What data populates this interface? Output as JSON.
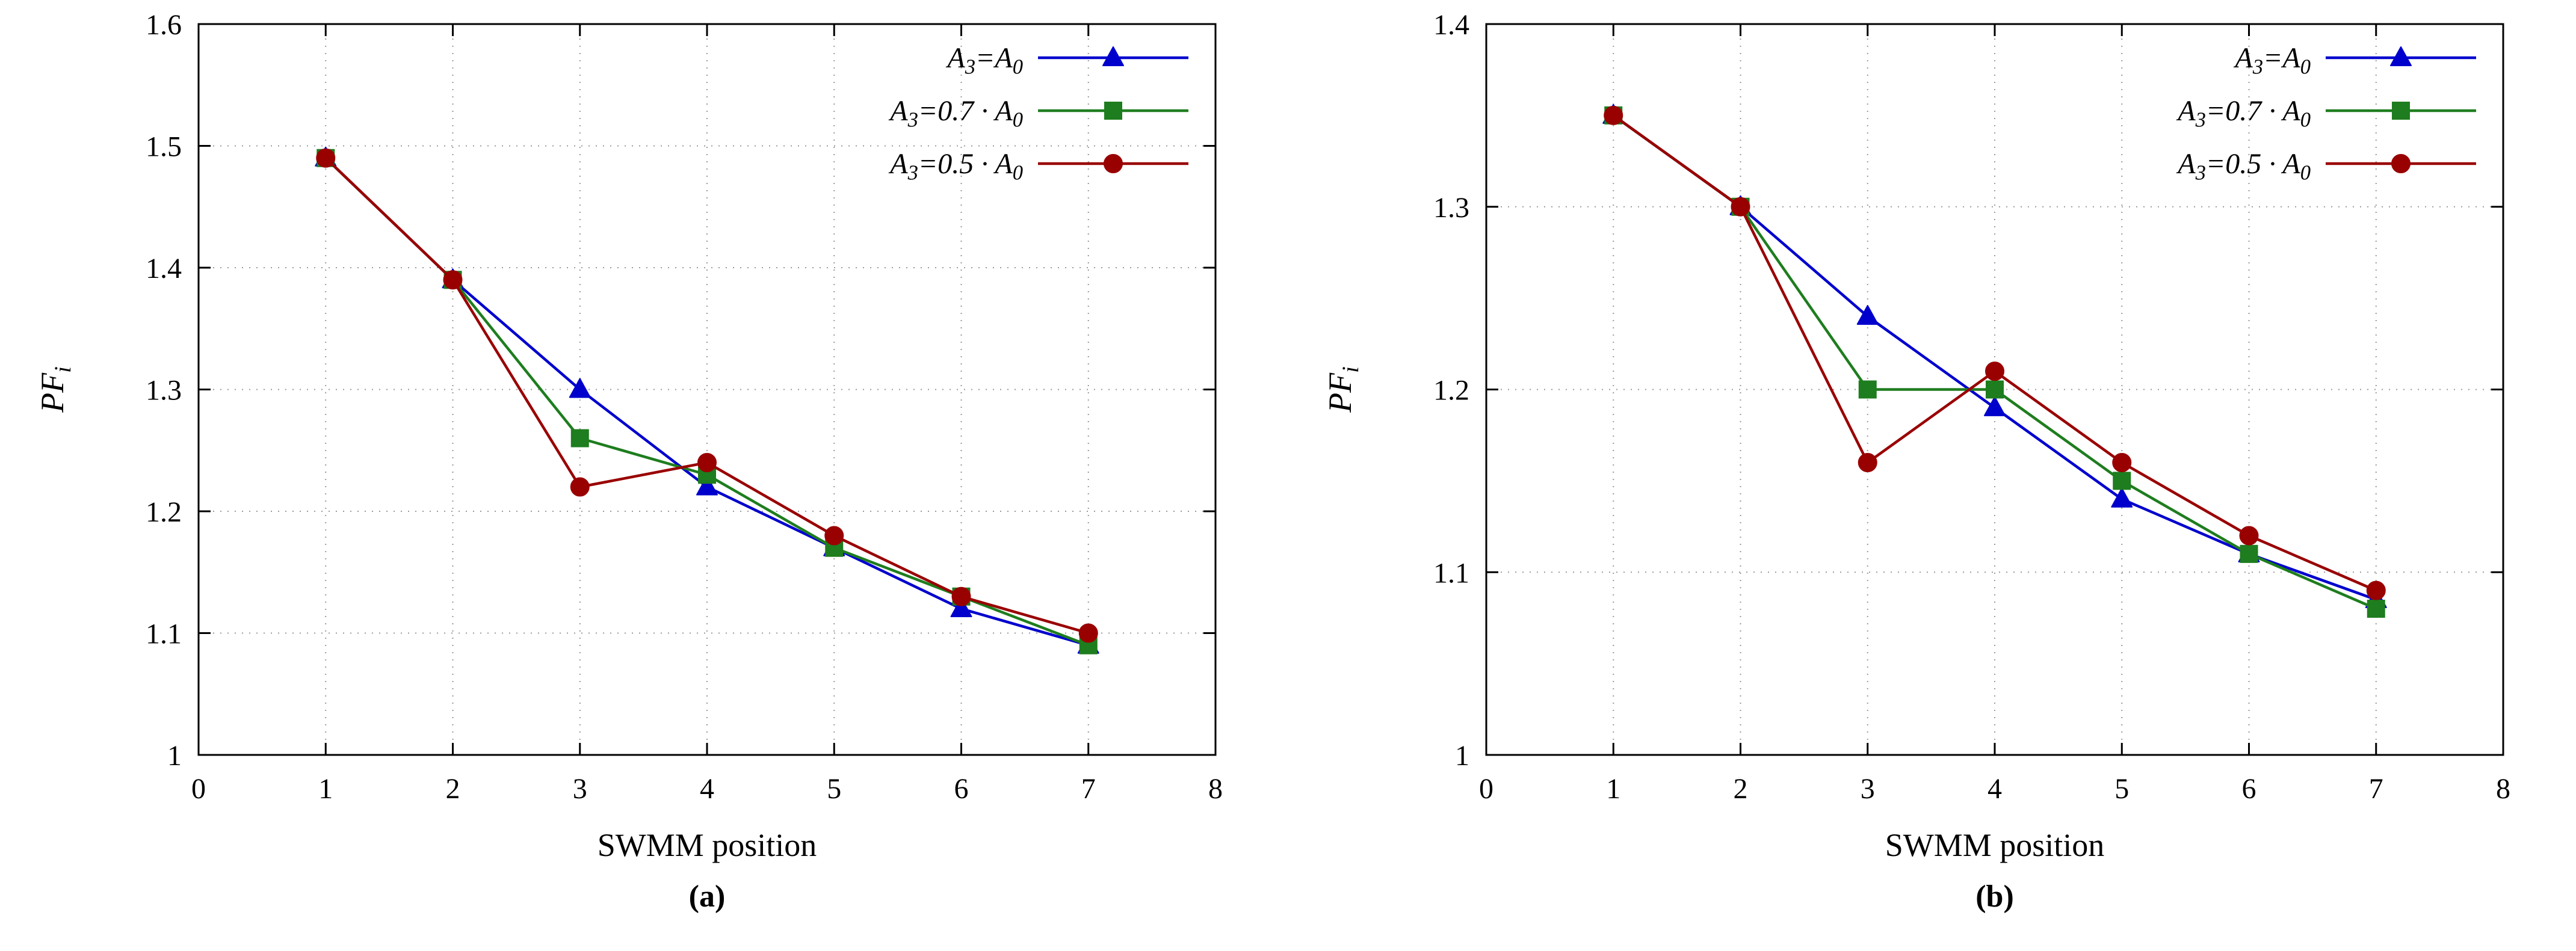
{
  "figure": {
    "background": "#ffffff",
    "text_color": "#000000",
    "grid_color": "#9a9a9a",
    "border_color": "#000000"
  },
  "chart_data": [
    {
      "type": "line",
      "caption": "(a)",
      "xlabel": "SWMM position",
      "ylabel": "PF_{i}",
      "xlim": [
        0,
        8
      ],
      "ylim": [
        1.0,
        1.6
      ],
      "xticks": [
        0,
        1,
        2,
        3,
        4,
        5,
        6,
        7,
        8
      ],
      "yticks": [
        1.0,
        1.1,
        1.2,
        1.3,
        1.4,
        1.5,
        1.6
      ],
      "grid": true,
      "legend_position": "top-right",
      "x": [
        1,
        2,
        3,
        4,
        5,
        6,
        7
      ],
      "series": [
        {
          "name": "A_{3}=A_{0}",
          "color": "#0000cd",
          "marker": "triangle",
          "values": [
            1.49,
            1.39,
            1.3,
            1.22,
            1.17,
            1.12,
            1.09
          ]
        },
        {
          "name": "A_{3}=0.7 · A_{0}",
          "color": "#1e7d1e",
          "marker": "square",
          "values": [
            1.49,
            1.39,
            1.26,
            1.23,
            1.17,
            1.13,
            1.09
          ]
        },
        {
          "name": "A_{3}=0.5 · A_{0}",
          "color": "#990000",
          "marker": "circle",
          "values": [
            1.49,
            1.39,
            1.22,
            1.24,
            1.18,
            1.13,
            1.1
          ]
        }
      ]
    },
    {
      "type": "line",
      "caption": "(b)",
      "xlabel": "SWMM position",
      "ylabel": "PF_{i}",
      "xlim": [
        0,
        8
      ],
      "ylim": [
        1.0,
        1.4
      ],
      "xticks": [
        0,
        1,
        2,
        3,
        4,
        5,
        6,
        7,
        8
      ],
      "yticks": [
        1.0,
        1.1,
        1.2,
        1.3,
        1.4
      ],
      "grid": true,
      "legend_position": "top-right",
      "x": [
        1,
        2,
        3,
        4,
        5,
        6,
        7
      ],
      "series": [
        {
          "name": "A_{3}=A_{0}",
          "color": "#0000cd",
          "marker": "triangle",
          "values": [
            1.35,
            1.3,
            1.24,
            1.19,
            1.14,
            1.11,
            1.085
          ]
        },
        {
          "name": "A_{3}=0.7 · A_{0}",
          "color": "#1e7d1e",
          "marker": "square",
          "values": [
            1.35,
            1.3,
            1.2,
            1.2,
            1.15,
            1.11,
            1.08
          ]
        },
        {
          "name": "A_{3}=0.5 · A_{0}",
          "color": "#990000",
          "marker": "circle",
          "values": [
            1.35,
            1.3,
            1.16,
            1.21,
            1.16,
            1.12,
            1.09
          ]
        }
      ]
    }
  ]
}
